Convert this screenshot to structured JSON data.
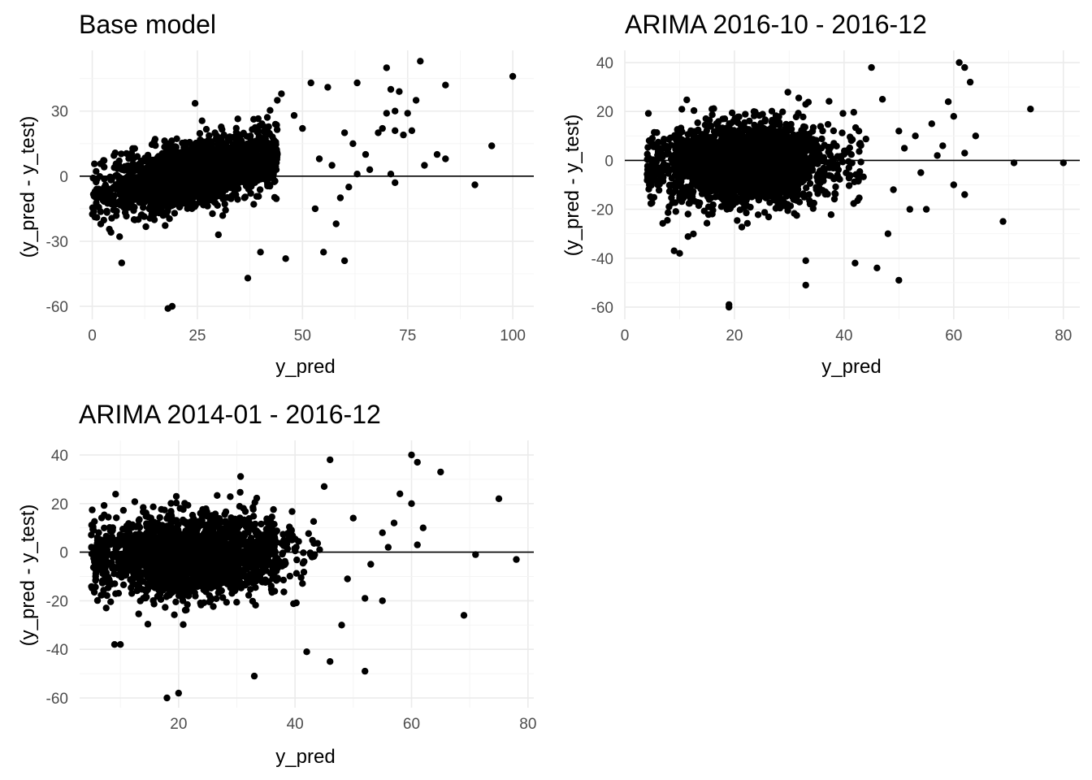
{
  "chart_data": [
    {
      "type": "scatter",
      "title": "Base model",
      "xlabel": "y_pred",
      "ylabel": "(y_pred - y_test)",
      "xlim": [
        -3,
        105
      ],
      "ylim": [
        -66,
        58
      ],
      "xticks": [
        0,
        25,
        50,
        75,
        100
      ],
      "xtick_labels": [
        "0",
        "25",
        "50",
        "75",
        "100"
      ],
      "yticks": [
        -60,
        -30,
        0,
        30
      ],
      "ytick_labels": [
        "-60",
        "-30",
        "0",
        "30"
      ],
      "hline": 0,
      "grid": true,
      "cloud": {
        "n": 2300,
        "x_center": 24,
        "x_spread": 10,
        "x_min": 0,
        "x_max": 44,
        "y_slope": 0.42,
        "y_intercept": -9,
        "y_spread": 7,
        "seed": 11
      },
      "outliers": [
        [
          70,
          50
        ],
        [
          78,
          53
        ],
        [
          100,
          46
        ],
        [
          84,
          42
        ],
        [
          63,
          43
        ],
        [
          52,
          43
        ],
        [
          56,
          41
        ],
        [
          45,
          38
        ],
        [
          71,
          40
        ],
        [
          73,
          39
        ],
        [
          77,
          35
        ],
        [
          72,
          30
        ],
        [
          75,
          29
        ],
        [
          70,
          29
        ],
        [
          68,
          20
        ],
        [
          72,
          21
        ],
        [
          76,
          21
        ],
        [
          74,
          19
        ],
        [
          69,
          22
        ],
        [
          82,
          10
        ],
        [
          84,
          8
        ],
        [
          79,
          5
        ],
        [
          95,
          14
        ],
        [
          91,
          -4
        ],
        [
          71,
          1
        ],
        [
          72,
          -3
        ],
        [
          58,
          -22
        ],
        [
          55,
          -35
        ],
        [
          60,
          -39
        ],
        [
          37,
          -47
        ],
        [
          18,
          -61
        ],
        [
          19,
          -60
        ],
        [
          7,
          -40
        ],
        [
          46,
          -38
        ],
        [
          40,
          -35
        ],
        [
          30,
          -27
        ],
        [
          60,
          20
        ],
        [
          62,
          15
        ],
        [
          57,
          5
        ],
        [
          65,
          10
        ],
        [
          61,
          -5
        ],
        [
          66,
          3
        ],
        [
          63,
          1
        ],
        [
          59,
          -10
        ],
        [
          54,
          8
        ],
        [
          50,
          22
        ],
        [
          48,
          28
        ],
        [
          44,
          35
        ],
        [
          53,
          -15
        ]
      ]
    },
    {
      "type": "scatter",
      "title": "ARIMA 2016-10 - 2016-12",
      "xlabel": "y_pred",
      "ylabel": "(y_pred - y_test)",
      "xlim": [
        0,
        83
      ],
      "ylim": [
        -65,
        45
      ],
      "xticks": [
        0,
        20,
        40,
        60,
        80
      ],
      "xtick_labels": [
        "0",
        "20",
        "40",
        "60",
        "80"
      ],
      "yticks": [
        -60,
        -40,
        -20,
        0,
        20,
        40
      ],
      "ytick_labels": [
        "-60",
        "-40",
        "-20",
        "0",
        "20",
        "40"
      ],
      "hline": 0,
      "grid": true,
      "cloud": {
        "n": 2300,
        "x_center": 22,
        "x_spread": 8,
        "x_min": 4,
        "x_max": 44,
        "y_slope": 0.08,
        "y_intercept": -3,
        "y_spread": 8,
        "seed": 23
      },
      "outliers": [
        [
          61,
          40
        ],
        [
          62,
          38
        ],
        [
          63,
          32
        ],
        [
          45,
          38
        ],
        [
          74,
          21
        ],
        [
          59,
          24
        ],
        [
          60,
          18
        ],
        [
          64,
          10
        ],
        [
          56,
          15
        ],
        [
          53,
          10
        ],
        [
          58,
          6
        ],
        [
          62,
          3
        ],
        [
          62,
          -14
        ],
        [
          60,
          -10
        ],
        [
          71,
          -1
        ],
        [
          80,
          -1
        ],
        [
          69,
          -25
        ],
        [
          50,
          -49
        ],
        [
          33,
          -51
        ],
        [
          33,
          -41
        ],
        [
          19,
          -59
        ],
        [
          19,
          -60
        ],
        [
          9,
          -37
        ],
        [
          10,
          -38
        ],
        [
          42,
          -42
        ],
        [
          46,
          -44
        ],
        [
          48,
          -30
        ],
        [
          52,
          -20
        ],
        [
          55,
          -20
        ],
        [
          47,
          25
        ],
        [
          50,
          12
        ],
        [
          54,
          -5
        ],
        [
          57,
          2
        ],
        [
          49,
          -12
        ],
        [
          51,
          5
        ]
      ]
    },
    {
      "type": "scatter",
      "title": "ARIMA 2014-01 - 2016-12",
      "xlabel": "y_pred",
      "ylabel": "(y_pred - y_test)",
      "xlim": [
        3,
        81
      ],
      "ylim": [
        -64,
        46
      ],
      "xticks": [
        20,
        40,
        60,
        80
      ],
      "xtick_labels": [
        "20",
        "40",
        "60",
        "80"
      ],
      "yticks": [
        -60,
        -40,
        -20,
        0,
        20,
        40
      ],
      "ytick_labels": [
        "-60",
        "-40",
        "-20",
        "0",
        "20",
        "40"
      ],
      "hline": 0,
      "grid": true,
      "cloud": {
        "n": 2300,
        "x_center": 22,
        "x_spread": 8,
        "x_min": 5,
        "x_max": 45,
        "y_slope": 0.08,
        "y_intercept": -3,
        "y_spread": 8,
        "seed": 37
      },
      "outliers": [
        [
          60,
          40
        ],
        [
          61,
          37
        ],
        [
          65,
          33
        ],
        [
          75,
          22
        ],
        [
          46,
          38
        ],
        [
          58,
          24
        ],
        [
          60,
          20
        ],
        [
          57,
          12
        ],
        [
          62,
          10
        ],
        [
          55,
          8
        ],
        [
          61,
          3
        ],
        [
          71,
          -1
        ],
        [
          78,
          -3
        ],
        [
          69,
          -26
        ],
        [
          52,
          -49
        ],
        [
          33,
          -51
        ],
        [
          18,
          -60
        ],
        [
          20,
          -58
        ],
        [
          9,
          -38
        ],
        [
          10,
          -38
        ],
        [
          42,
          -41
        ],
        [
          46,
          -45
        ],
        [
          48,
          -30
        ],
        [
          52,
          -19
        ],
        [
          55,
          -20
        ],
        [
          45,
          27
        ],
        [
          50,
          14
        ],
        [
          53,
          -5
        ],
        [
          56,
          2
        ],
        [
          49,
          -11
        ]
      ]
    }
  ]
}
